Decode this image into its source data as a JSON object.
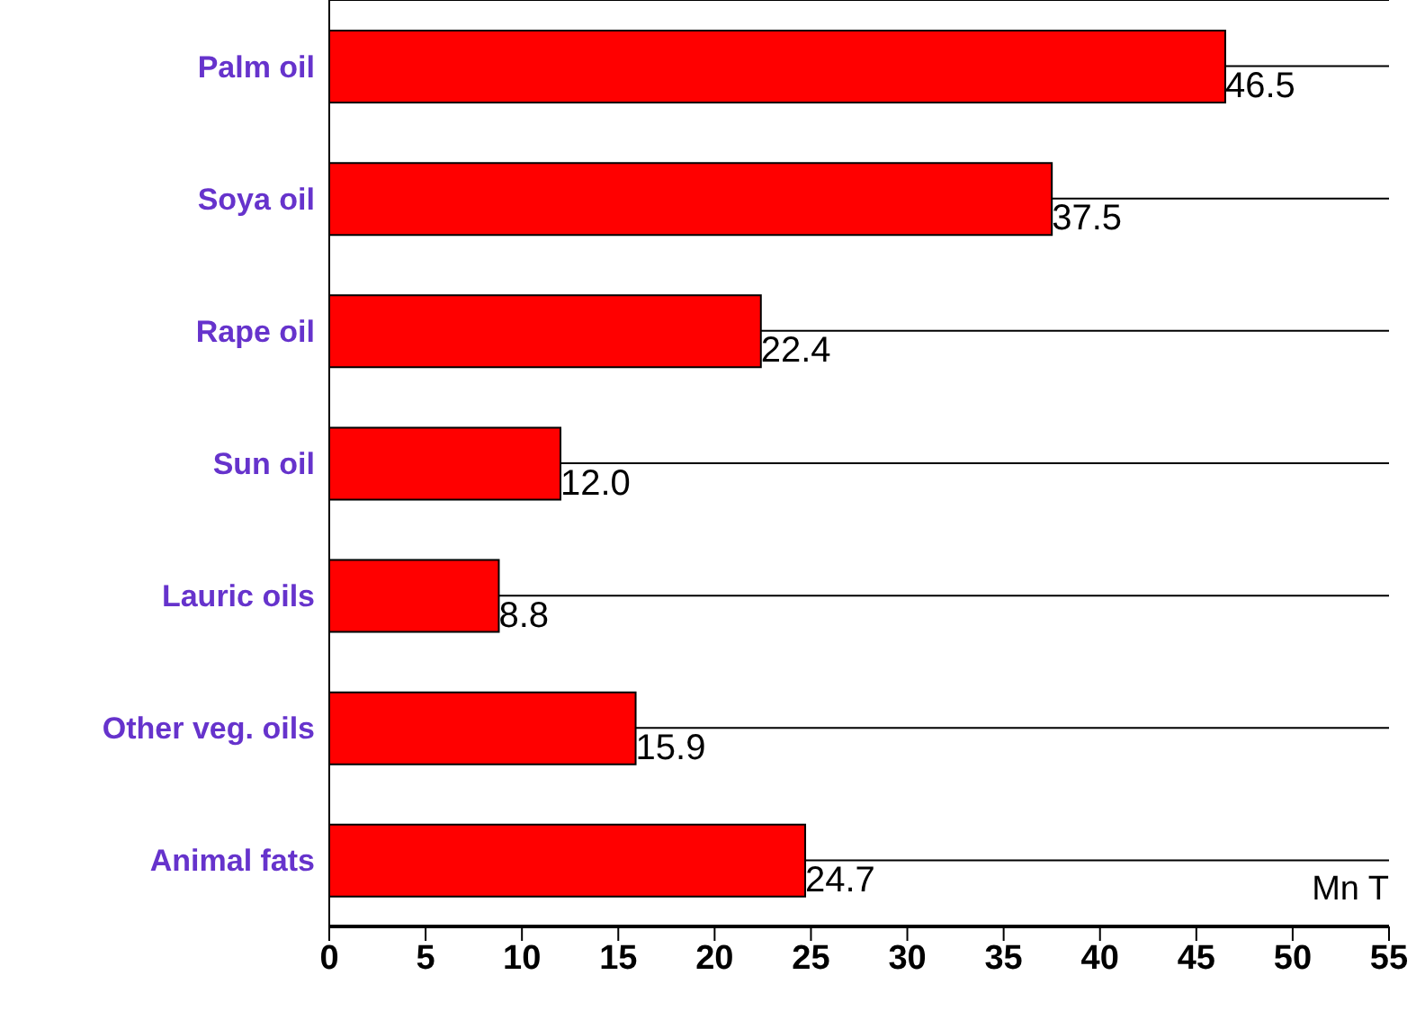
{
  "chart_data": {
    "type": "bar",
    "orientation": "horizontal",
    "categories": [
      "Palm oil",
      "Soya oil",
      "Rape oil",
      "Sun oil",
      "Lauric oils",
      "Other veg. oils",
      "Animal fats"
    ],
    "values": [
      46.5,
      37.5,
      22.4,
      12.0,
      8.8,
      15.9,
      24.7
    ],
    "value_labels": [
      "46.5",
      "37.5",
      "22.4",
      "12.0",
      "8.8",
      "15.9",
      "24.7"
    ],
    "color": "#ff0000",
    "xlim": [
      0,
      55
    ],
    "xticks": [
      0,
      5,
      10,
      15,
      20,
      25,
      30,
      35,
      40,
      45,
      50,
      55
    ],
    "grid": "y",
    "annotations": [
      "Mn T"
    ]
  }
}
